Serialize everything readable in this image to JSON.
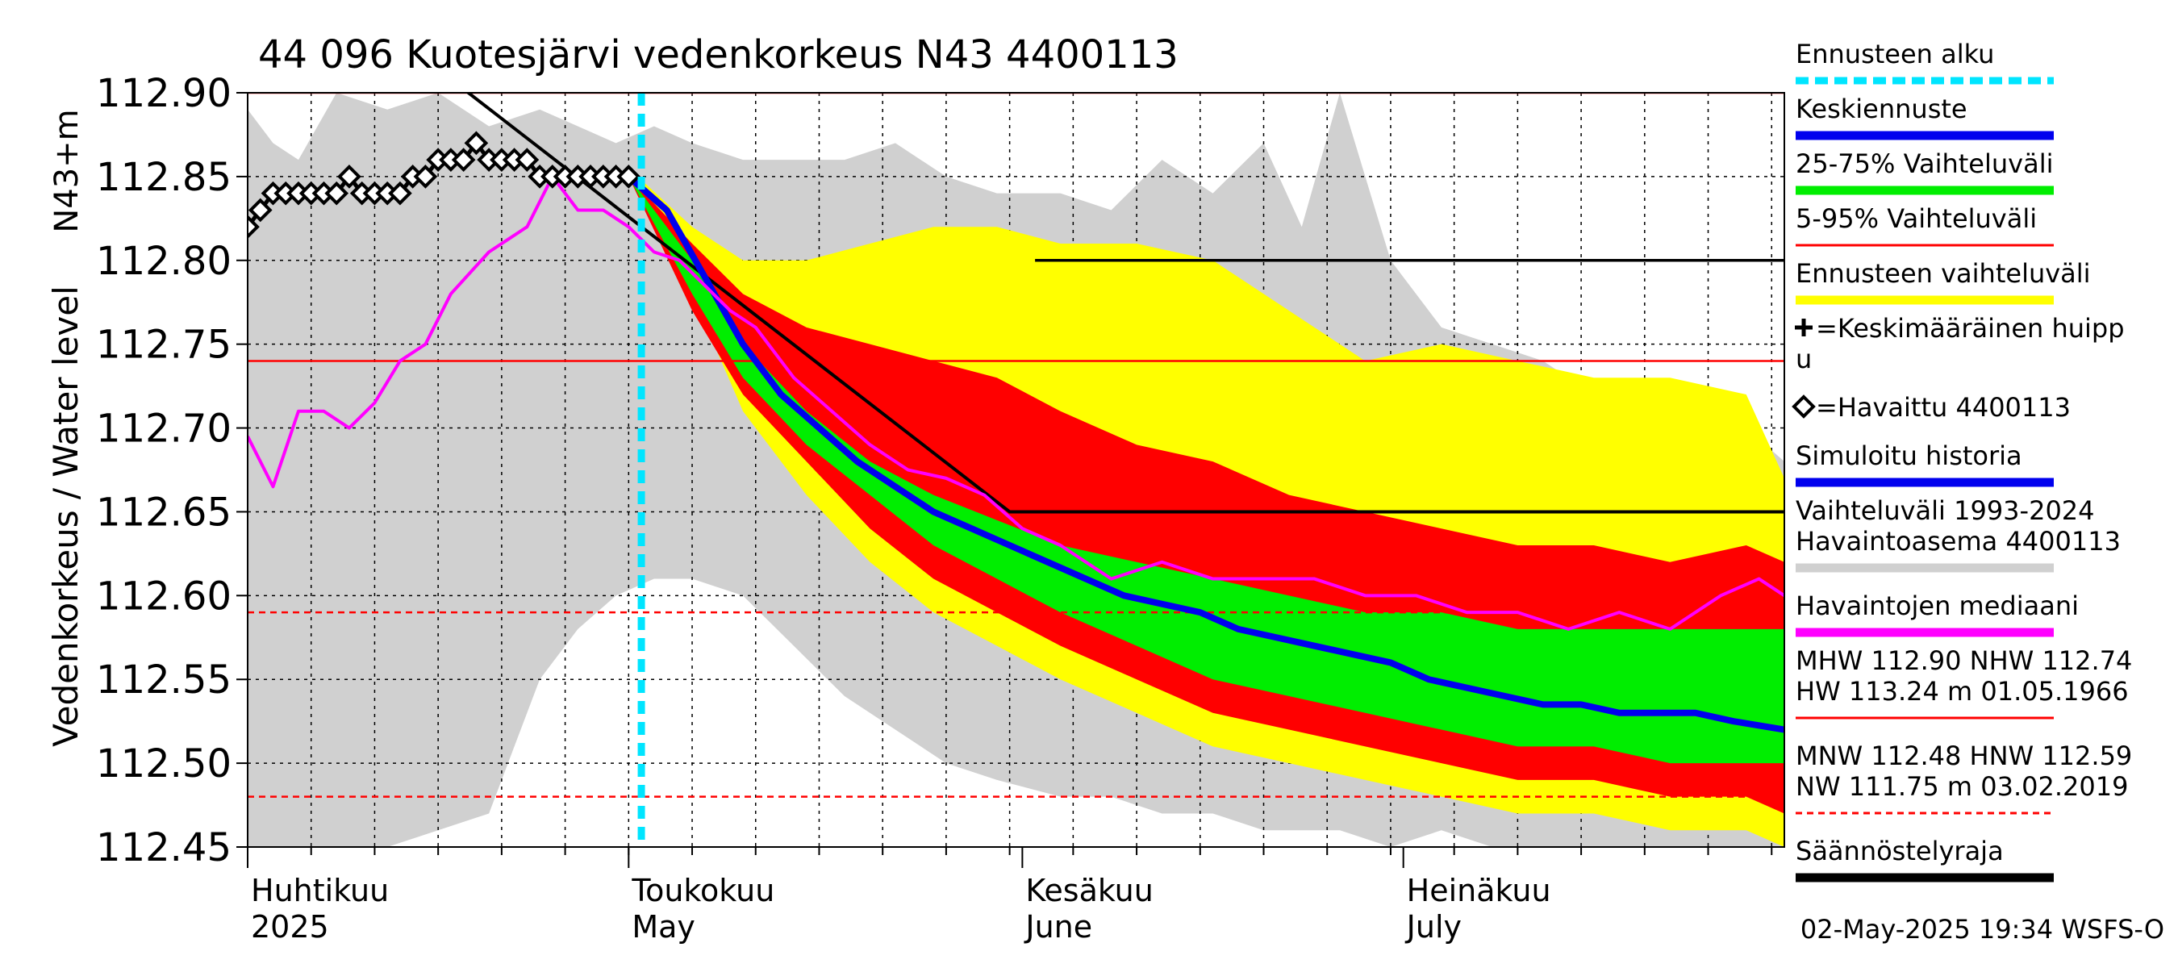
{
  "chart_data": {
    "type": "area",
    "title": "44 096 Kuotesjärvi vedenkorkeus N43 4400113",
    "ylabel": "Vedenkorkeus / Water level",
    "yunit": "N43+m",
    "ylim": [
      112.45,
      112.9
    ],
    "yticks": [
      "112.90",
      "112.85",
      "112.80",
      "112.75",
      "112.70",
      "112.65",
      "112.60",
      "112.55",
      "112.50",
      "112.45"
    ],
    "ytick_values": [
      112.9,
      112.85,
      112.8,
      112.75,
      112.7,
      112.65,
      112.6,
      112.55,
      112.5,
      112.45
    ],
    "xlim": [
      "2025-04-01",
      "2025-07-31"
    ],
    "month_labels": [
      {
        "date": "2025-04-01",
        "fi": "Huhtikuu",
        "en": "2025"
      },
      {
        "date": "2025-05-01",
        "fi": "Toukokuu",
        "en": "May"
      },
      {
        "date": "2025-06-01",
        "fi": "Kesäkuu",
        "en": "June"
      },
      {
        "date": "2025-07-01",
        "fi": "Heinäkuu",
        "en": "July"
      }
    ],
    "grid": true,
    "forecast_start": "2025-05-02",
    "reference_lines": [
      {
        "value": 112.9,
        "style": "solid",
        "color": "#ff0000"
      },
      {
        "value": 112.74,
        "style": "solid",
        "color": "#ff0000"
      },
      {
        "value": 112.59,
        "style": "dashed",
        "color": "#ff0000"
      },
      {
        "value": 112.48,
        "style": "dashed",
        "color": "#ff0000"
      }
    ],
    "regulation_limit": [
      {
        "x": "2025-04-09",
        "y": 112.955
      },
      {
        "x": "2025-05-31",
        "y": 112.65
      },
      {
        "x": "2025-07-31",
        "y": 112.65
      }
    ],
    "regulation_segment": [
      {
        "x": "2025-06-02",
        "y": 112.8
      },
      {
        "x": "2025-07-31",
        "y": 112.8
      }
    ],
    "history_range": {
      "x": [
        "2025-04-01",
        "2025-04-03",
        "2025-04-05",
        "2025-04-08",
        "2025-04-12",
        "2025-04-16",
        "2025-04-20",
        "2025-04-24",
        "2025-04-27",
        "2025-04-30",
        "2025-05-03",
        "2025-05-06",
        "2025-05-10",
        "2025-05-14",
        "2025-05-18",
        "2025-05-22",
        "2025-05-26",
        "2025-05-30",
        "2025-06-04",
        "2025-06-08",
        "2025-06-12",
        "2025-06-16",
        "2025-06-20",
        "2025-06-23",
        "2025-06-26",
        "2025-06-30",
        "2025-07-04",
        "2025-07-08",
        "2025-07-12",
        "2025-07-16",
        "2025-07-20",
        "2025-07-24",
        "2025-07-28",
        "2025-07-31"
      ],
      "upper": [
        112.89,
        112.87,
        112.86,
        112.9,
        112.89,
        112.9,
        112.88,
        112.89,
        112.88,
        112.87,
        112.88,
        112.87,
        112.86,
        112.86,
        112.86,
        112.87,
        112.85,
        112.84,
        112.84,
        112.83,
        112.86,
        112.84,
        112.87,
        112.82,
        112.9,
        112.8,
        112.76,
        112.75,
        112.74,
        112.72,
        112.73,
        112.72,
        112.7,
        112.68
      ],
      "lower": [
        112.45,
        112.45,
        112.45,
        112.45,
        112.45,
        112.46,
        112.47,
        112.55,
        112.58,
        112.6,
        112.61,
        112.61,
        112.6,
        112.57,
        112.54,
        112.52,
        112.5,
        112.49,
        112.48,
        112.48,
        112.47,
        112.47,
        112.46,
        112.46,
        112.46,
        112.45,
        112.46,
        112.45,
        112.45,
        112.45,
        112.45,
        112.45,
        112.45,
        112.45
      ]
    },
    "forecast_range": {
      "x": [
        "2025-05-01",
        "2025-05-06",
        "2025-05-10",
        "2025-05-15",
        "2025-05-20",
        "2025-05-25",
        "2025-05-30",
        "2025-06-04",
        "2025-06-10",
        "2025-06-16",
        "2025-06-22",
        "2025-06-28",
        "2025-07-04",
        "2025-07-10",
        "2025-07-16",
        "2025-07-22",
        "2025-07-28",
        "2025-07-31"
      ],
      "upper": [
        112.855,
        112.82,
        112.8,
        112.8,
        112.81,
        112.82,
        112.82,
        112.81,
        112.81,
        112.8,
        112.77,
        112.74,
        112.75,
        112.74,
        112.73,
        112.73,
        112.72,
        112.67
      ],
      "lower": [
        112.85,
        112.78,
        112.71,
        112.66,
        112.62,
        112.59,
        112.57,
        112.55,
        112.53,
        112.51,
        112.5,
        112.49,
        112.48,
        112.47,
        112.47,
        112.46,
        112.46,
        112.45
      ]
    },
    "range_5_95": {
      "x": [
        "2025-05-01",
        "2025-05-06",
        "2025-05-10",
        "2025-05-15",
        "2025-05-20",
        "2025-05-25",
        "2025-05-30",
        "2025-06-04",
        "2025-06-10",
        "2025-06-16",
        "2025-06-22",
        "2025-06-28",
        "2025-07-04",
        "2025-07-10",
        "2025-07-16",
        "2025-07-22",
        "2025-07-28",
        "2025-07-31"
      ],
      "upper": [
        112.85,
        112.81,
        112.78,
        112.76,
        112.75,
        112.74,
        112.73,
        112.71,
        112.69,
        112.68,
        112.66,
        112.65,
        112.64,
        112.63,
        112.63,
        112.62,
        112.63,
        112.62
      ],
      "lower": [
        112.85,
        112.77,
        112.72,
        112.68,
        112.64,
        112.61,
        112.59,
        112.57,
        112.55,
        112.53,
        112.52,
        112.51,
        112.5,
        112.49,
        112.49,
        112.48,
        112.48,
        112.47
      ]
    },
    "range_25_75": {
      "x": [
        "2025-05-01",
        "2025-05-06",
        "2025-05-10",
        "2025-05-15",
        "2025-05-20",
        "2025-05-25",
        "2025-05-30",
        "2025-06-04",
        "2025-06-10",
        "2025-06-16",
        "2025-06-22",
        "2025-06-28",
        "2025-07-04",
        "2025-07-10",
        "2025-07-16",
        "2025-07-22",
        "2025-07-28",
        "2025-07-31"
      ],
      "upper": [
        112.85,
        112.8,
        112.75,
        112.71,
        112.68,
        112.66,
        112.645,
        112.63,
        112.62,
        112.61,
        112.6,
        112.59,
        112.59,
        112.58,
        112.58,
        112.58,
        112.58,
        112.58
      ],
      "lower": [
        112.85,
        112.78,
        112.73,
        112.69,
        112.66,
        112.63,
        112.61,
        112.59,
        112.57,
        112.55,
        112.54,
        112.53,
        112.52,
        112.51,
        112.51,
        112.5,
        112.5,
        112.5
      ]
    },
    "series": [
      {
        "name": "Keskiennuste",
        "color": "#0000ee",
        "x": [
          "2025-05-01",
          "2025-05-04",
          "2025-05-07",
          "2025-05-10",
          "2025-05-13",
          "2025-05-16",
          "2025-05-19",
          "2025-05-22",
          "2025-05-25",
          "2025-05-28",
          "2025-05-31",
          "2025-06-03",
          "2025-06-06",
          "2025-06-09",
          "2025-06-12",
          "2025-06-15",
          "2025-06-18",
          "2025-06-21",
          "2025-06-24",
          "2025-06-27",
          "2025-06-30",
          "2025-07-03",
          "2025-07-06",
          "2025-07-09",
          "2025-07-12",
          "2025-07-15",
          "2025-07-18",
          "2025-07-21",
          "2025-07-24",
          "2025-07-27",
          "2025-07-31"
        ],
        "y": [
          112.85,
          112.83,
          112.79,
          112.75,
          112.72,
          112.7,
          112.68,
          112.665,
          112.65,
          112.64,
          112.63,
          112.62,
          112.61,
          112.6,
          112.595,
          112.59,
          112.58,
          112.575,
          112.57,
          112.565,
          112.56,
          112.55,
          112.545,
          112.54,
          112.535,
          112.535,
          112.53,
          112.53,
          112.53,
          112.525,
          112.52
        ]
      },
      {
        "name": "Havaintojen mediaani",
        "color": "#ff00ff",
        "x": [
          "2025-04-01",
          "2025-04-03",
          "2025-04-05",
          "2025-04-07",
          "2025-04-09",
          "2025-04-11",
          "2025-04-13",
          "2025-04-15",
          "2025-04-17",
          "2025-04-20",
          "2025-04-23",
          "2025-04-25",
          "2025-04-27",
          "2025-04-29",
          "2025-05-01",
          "2025-05-03",
          "2025-05-05",
          "2025-05-07",
          "2025-05-09",
          "2025-05-11",
          "2025-05-14",
          "2025-05-17",
          "2025-05-20",
          "2025-05-23",
          "2025-05-26",
          "2025-05-29",
          "2025-06-01",
          "2025-06-04",
          "2025-06-08",
          "2025-06-12",
          "2025-06-16",
          "2025-06-20",
          "2025-06-24",
          "2025-06-28",
          "2025-07-02",
          "2025-07-06",
          "2025-07-10",
          "2025-07-14",
          "2025-07-18",
          "2025-07-22",
          "2025-07-26",
          "2025-07-29",
          "2025-07-31"
        ],
        "y": [
          112.695,
          112.665,
          112.71,
          112.71,
          112.7,
          112.715,
          112.74,
          112.75,
          112.78,
          112.805,
          112.82,
          112.85,
          112.83,
          112.83,
          112.82,
          112.805,
          112.8,
          112.785,
          112.77,
          112.76,
          112.73,
          112.71,
          112.69,
          112.675,
          112.67,
          112.66,
          112.64,
          112.63,
          112.61,
          112.62,
          112.61,
          112.61,
          112.61,
          112.6,
          112.6,
          112.59,
          112.59,
          112.58,
          112.59,
          112.58,
          112.6,
          112.61,
          112.6
        ]
      },
      {
        "name": "Havaittu 4400113",
        "color": "#000000",
        "x": [
          "2025-04-01",
          "2025-04-02",
          "2025-04-03",
          "2025-04-04",
          "2025-04-05",
          "2025-04-06",
          "2025-04-07",
          "2025-04-08",
          "2025-04-09",
          "2025-04-10",
          "2025-04-11",
          "2025-04-12",
          "2025-04-13",
          "2025-04-14",
          "2025-04-15",
          "2025-04-16",
          "2025-04-17",
          "2025-04-18",
          "2025-04-19",
          "2025-04-20",
          "2025-04-21",
          "2025-04-22",
          "2025-04-23",
          "2025-04-24",
          "2025-04-25",
          "2025-04-26",
          "2025-04-27",
          "2025-04-28",
          "2025-04-29",
          "2025-04-30",
          "2025-05-01"
        ],
        "y": [
          112.82,
          112.83,
          112.84,
          112.84,
          112.84,
          112.84,
          112.84,
          112.84,
          112.85,
          112.84,
          112.84,
          112.84,
          112.84,
          112.85,
          112.85,
          112.86,
          112.86,
          112.86,
          112.87,
          112.86,
          112.86,
          112.86,
          112.86,
          112.85,
          112.85,
          112.85,
          112.85,
          112.85,
          112.85,
          112.85,
          112.85
        ]
      }
    ],
    "legend": {
      "placement": "right",
      "items": [
        {
          "label": "Ennusteen alku",
          "color": "#00e5ff",
          "style": "dashed"
        },
        {
          "label": "Keskiennuste",
          "color": "#0000ee",
          "style": "line"
        },
        {
          "label": "25-75% Vaihteluväli",
          "color": "#00ee00",
          "style": "line"
        },
        {
          "label": "5-95% Vaihteluväli",
          "color": "#ff0000",
          "style": "line"
        },
        {
          "label": "Ennusteen vaihteluväli",
          "color": "#ffff00",
          "style": "line"
        },
        {
          "label": "=Keskimääräinen huipp",
          "label2": "u",
          "style": "plus"
        },
        {
          "label": "=Havaittu 4400113",
          "style": "diamond"
        },
        {
          "label": "Simuloitu historia",
          "color": "#0000ee",
          "style": "line"
        },
        {
          "label": "Vaihteluväli 1993-2024",
          "label2": " Havaintoasema 4400113",
          "color": "#d0d0d0",
          "style": "line"
        },
        {
          "label": "Havaintojen mediaani",
          "color": "#ff00ff",
          "style": "line"
        },
        {
          "label": "MHW 112.90 NHW 112.74",
          "label2": "HW 113.24 m 01.05.1966",
          "color": "#ff0000",
          "style": "line"
        },
        {
          "label": "MNW 112.48 HNW 112.59",
          "label2": "NW 111.75 m 03.02.2019",
          "color": "#ff0000",
          "style": "dashed"
        },
        {
          "label": "Säännöstelyraja",
          "color": "#000000",
          "style": "line"
        }
      ]
    },
    "footer": "02-May-2025 19:34 WSFS-O"
  }
}
